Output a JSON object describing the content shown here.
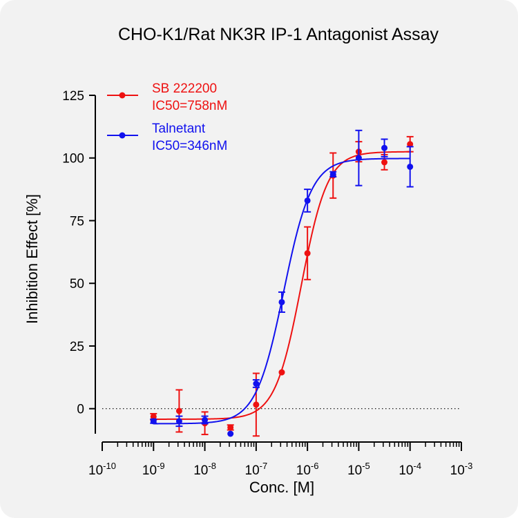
{
  "chart_data": {
    "type": "scatter",
    "title": "CHO-K1/Rat NK3R IP-1 Antagonist Assay",
    "xlabel": "Conc. [M]",
    "ylabel": "Inhibition Effect [%]",
    "x_scale": "log",
    "xlim": [
      1e-10,
      0.001
    ],
    "ylim": [
      -10,
      125
    ],
    "y_ticks": [
      0,
      25,
      50,
      75,
      100,
      125
    ],
    "x_ticks": [
      {
        "exp": -10,
        "base": "10",
        "sup": "-10"
      },
      {
        "exp": -9,
        "base": "10",
        "sup": "-9"
      },
      {
        "exp": -8,
        "base": "10",
        "sup": "-8"
      },
      {
        "exp": -7,
        "base": "10",
        "sup": "-7"
      },
      {
        "exp": -6,
        "base": "10",
        "sup": "-6"
      },
      {
        "exp": -5,
        "base": "10",
        "sup": "-5"
      },
      {
        "exp": -4,
        "base": "10",
        "sup": "-4"
      },
      {
        "exp": -3,
        "base": "10",
        "sup": "-3"
      }
    ],
    "reference_line": {
      "y": 0,
      "style": "dotted"
    },
    "legend_position": "top-left",
    "series": [
      {
        "name": "SB 222200",
        "annotation": "IC50=758nM",
        "color": "#ee1111",
        "fit": {
          "bottom": -4.2,
          "top": 102.5,
          "ic50": 7.58e-07,
          "hill": 1.7
        },
        "points": [
          {
            "x": 1e-09,
            "y": -3.2,
            "err": 1.2
          },
          {
            "x": 3.16e-09,
            "y": -0.9,
            "err": 8.4
          },
          {
            "x": 1e-08,
            "y": -5.8,
            "err": 4.5
          },
          {
            "x": 3.16e-08,
            "y": -7.5,
            "err": 1.0
          },
          {
            "x": 1e-07,
            "y": 1.6,
            "err": 12.5
          },
          {
            "x": 3.16e-07,
            "y": 14.5,
            "err": 0
          },
          {
            "x": 1e-06,
            "y": 62,
            "err": 10.5
          },
          {
            "x": 3.16e-06,
            "y": 93,
            "err": 9
          },
          {
            "x": 1e-05,
            "y": 102.5,
            "err": 4
          },
          {
            "x": 3.16e-05,
            "y": 98.3,
            "err": 3
          },
          {
            "x": 0.0001,
            "y": 105.5,
            "err": 3
          }
        ]
      },
      {
        "name": "Talnetant",
        "annotation": "IC50=346nM",
        "color": "#1111ee",
        "fit": {
          "bottom": -6,
          "top": 99.8,
          "ic50": 3.46e-07,
          "hill": 1.6
        },
        "points": [
          {
            "x": 1e-09,
            "y": -5,
            "err": 0.8
          },
          {
            "x": 3.16e-09,
            "y": -5,
            "err": 2
          },
          {
            "x": 1e-08,
            "y": -4.5,
            "err": 1.5
          },
          {
            "x": 3.16e-08,
            "y": -10,
            "err": 0
          },
          {
            "x": 1e-07,
            "y": 10,
            "err": 1.5
          },
          {
            "x": 3.16e-07,
            "y": 42.5,
            "err": 4
          },
          {
            "x": 1e-06,
            "y": 83,
            "err": 4.5
          },
          {
            "x": 3.16e-06,
            "y": 93.5,
            "err": 1
          },
          {
            "x": 1e-05,
            "y": 100,
            "err": 11
          },
          {
            "x": 3.16e-05,
            "y": 104,
            "err": 3.5
          },
          {
            "x": 0.0001,
            "y": 96.5,
            "err": 8
          }
        ]
      }
    ]
  }
}
